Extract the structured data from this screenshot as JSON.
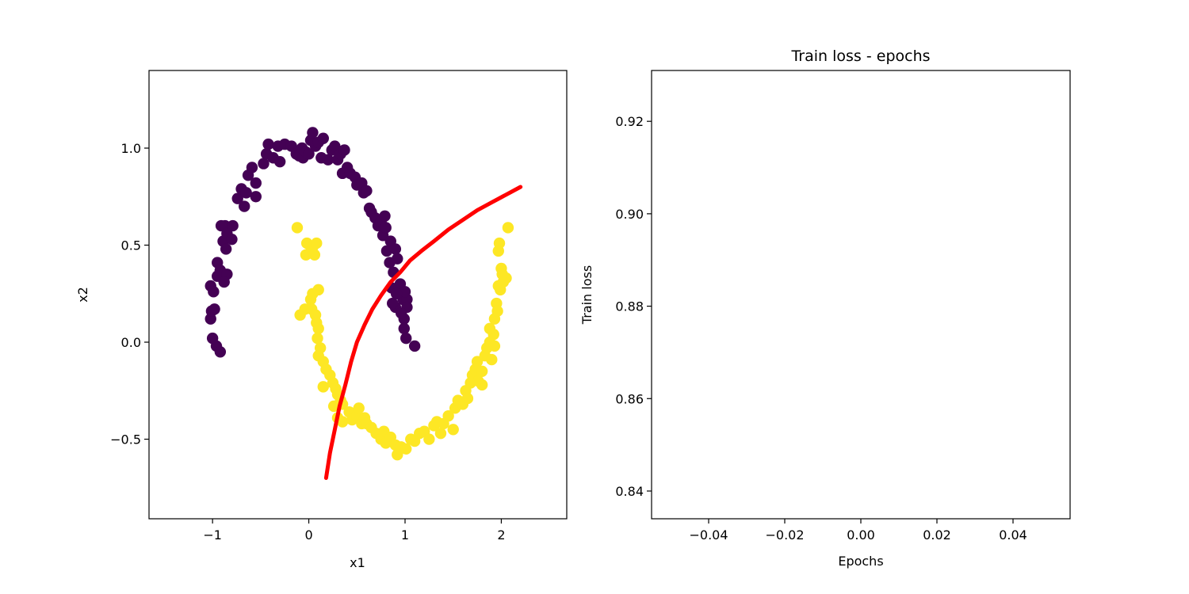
{
  "chart_data": [
    {
      "type": "scatter",
      "title": "",
      "xlabel": "x1",
      "ylabel": "x2",
      "xlim": [
        -1.66,
        2.68
      ],
      "ylim": [
        -0.91,
        1.4
      ],
      "xticks": [
        -1,
        0,
        1,
        2
      ],
      "yticks": [
        -0.5,
        0.0,
        0.5,
        1.0
      ],
      "xtick_labels": [
        "−1",
        "0",
        "1",
        "2"
      ],
      "ytick_labels": [
        "−0.5",
        "0.0",
        "0.5",
        "1.0"
      ],
      "grid": false,
      "colors": {
        "class0": "#440154",
        "class1": "#fde725",
        "boundary": "#ff0000"
      },
      "series": [
        {
          "kind": "scatter",
          "points": [
            [
              -1.02,
              0.12
            ],
            [
              -1.01,
              0.16
            ],
            [
              -1.0,
              0.02
            ],
            [
              -0.98,
              0.17
            ],
            [
              -1.02,
              0.29
            ],
            [
              -0.99,
              0.26
            ],
            [
              -0.95,
              0.34
            ],
            [
              -0.96,
              -0.02
            ],
            [
              -0.92,
              -0.05
            ],
            [
              -0.95,
              0.41
            ],
            [
              -0.92,
              0.37
            ],
            [
              -0.85,
              0.35
            ],
            [
              -0.88,
              0.31
            ],
            [
              -0.89,
              0.52
            ],
            [
              -0.86,
              0.48
            ],
            [
              -0.91,
              0.6
            ],
            [
              -0.87,
              0.6
            ],
            [
              -0.85,
              0.56
            ],
            [
              -0.79,
              0.6
            ],
            [
              -0.8,
              0.53
            ],
            [
              -0.74,
              0.74
            ],
            [
              -0.7,
              0.79
            ],
            [
              -0.67,
              0.7
            ],
            [
              -0.65,
              0.77
            ],
            [
              -0.63,
              0.86
            ],
            [
              -0.59,
              0.9
            ],
            [
              -0.55,
              0.82
            ],
            [
              -0.55,
              0.75
            ],
            [
              -0.47,
              0.92
            ],
            [
              -0.44,
              0.97
            ],
            [
              -0.42,
              1.02
            ],
            [
              -0.37,
              0.95
            ],
            [
              -0.32,
              1.01
            ],
            [
              -0.3,
              0.93
            ],
            [
              -0.25,
              1.02
            ],
            [
              -0.18,
              1.01
            ],
            [
              -0.13,
              0.97
            ],
            [
              -0.1,
              0.96
            ],
            [
              -0.07,
              1.0
            ],
            [
              -0.06,
              0.95
            ],
            [
              -0.03,
              0.98
            ],
            [
              0.0,
              0.97
            ],
            [
              0.02,
              1.04
            ],
            [
              0.04,
              1.08
            ],
            [
              0.07,
              1.01
            ],
            [
              0.1,
              1.03
            ],
            [
              0.13,
              0.95
            ],
            [
              0.15,
              1.05
            ],
            [
              0.2,
              0.94
            ],
            [
              0.24,
              0.99
            ],
            [
              0.27,
              1.01
            ],
            [
              0.3,
              0.94
            ],
            [
              0.33,
              0.97
            ],
            [
              0.35,
              0.87
            ],
            [
              0.37,
              0.99
            ],
            [
              0.4,
              0.9
            ],
            [
              0.43,
              0.87
            ],
            [
              0.48,
              0.85
            ],
            [
              0.5,
              0.81
            ],
            [
              0.55,
              0.82
            ],
            [
              0.57,
              0.77
            ],
            [
              0.6,
              0.78
            ],
            [
              0.63,
              0.69
            ],
            [
              0.65,
              0.67
            ],
            [
              0.69,
              0.64
            ],
            [
              0.72,
              0.6
            ],
            [
              0.75,
              0.62
            ],
            [
              0.77,
              0.55
            ],
            [
              0.79,
              0.65
            ],
            [
              0.8,
              0.59
            ],
            [
              0.81,
              0.47
            ],
            [
              0.85,
              0.52
            ],
            [
              0.84,
              0.41
            ],
            [
              0.9,
              0.48
            ],
            [
              0.88,
              0.36
            ],
            [
              0.92,
              0.43
            ],
            [
              0.95,
              0.3
            ],
            [
              0.98,
              0.22
            ],
            [
              0.99,
              0.12
            ],
            [
              1.02,
              0.22
            ],
            [
              1.0,
              0.26
            ],
            [
              0.99,
              0.07
            ],
            [
              0.86,
              0.28
            ],
            [
              0.9,
              0.18
            ],
            [
              1.02,
              0.18
            ],
            [
              1.01,
              0.02
            ],
            [
              1.1,
              -0.02
            ],
            [
              0.91,
              0.25
            ],
            [
              0.87,
              0.2
            ],
            [
              0.96,
              0.15
            ]
          ]
        },
        {
          "kind": "scatter",
          "points": [
            [
              -0.12,
              0.59
            ],
            [
              -0.02,
              0.51
            ],
            [
              -0.03,
              0.45
            ],
            [
              0.01,
              0.46
            ],
            [
              0.04,
              0.49
            ],
            [
              0.08,
              0.51
            ],
            [
              0.06,
              0.45
            ],
            [
              -0.09,
              0.14
            ],
            [
              -0.04,
              0.17
            ],
            [
              0.02,
              0.22
            ],
            [
              0.04,
              0.25
            ],
            [
              0.1,
              0.27
            ],
            [
              0.03,
              0.17
            ],
            [
              0.07,
              0.14
            ],
            [
              0.08,
              0.1
            ],
            [
              0.1,
              0.07
            ],
            [
              0.09,
              0.02
            ],
            [
              0.12,
              -0.03
            ],
            [
              0.1,
              -0.07
            ],
            [
              0.15,
              -0.1
            ],
            [
              0.18,
              -0.14
            ],
            [
              0.22,
              -0.17
            ],
            [
              0.25,
              -0.21
            ],
            [
              0.28,
              -0.24
            ],
            [
              0.3,
              -0.27
            ],
            [
              0.33,
              -0.3
            ],
            [
              0.35,
              -0.32
            ],
            [
              0.15,
              -0.23
            ],
            [
              0.26,
              -0.33
            ],
            [
              0.3,
              -0.39
            ],
            [
              0.35,
              -0.41
            ],
            [
              0.42,
              -0.36
            ],
            [
              0.45,
              -0.4
            ],
            [
              0.5,
              -0.38
            ],
            [
              0.55,
              -0.42
            ],
            [
              0.58,
              -0.39
            ],
            [
              0.6,
              -0.42
            ],
            [
              0.52,
              -0.34
            ],
            [
              0.65,
              -0.44
            ],
            [
              0.7,
              -0.47
            ],
            [
              0.75,
              -0.5
            ],
            [
              0.78,
              -0.46
            ],
            [
              0.8,
              -0.52
            ],
            [
              0.85,
              -0.49
            ],
            [
              0.9,
              -0.53
            ],
            [
              0.92,
              -0.58
            ],
            [
              0.96,
              -0.54
            ],
            [
              1.01,
              -0.55
            ],
            [
              1.06,
              -0.5
            ],
            [
              1.1,
              -0.51
            ],
            [
              1.15,
              -0.47
            ],
            [
              1.2,
              -0.46
            ],
            [
              1.25,
              -0.5
            ],
            [
              1.3,
              -0.43
            ],
            [
              1.33,
              -0.41
            ],
            [
              1.37,
              -0.47
            ],
            [
              1.4,
              -0.42
            ],
            [
              1.45,
              -0.38
            ],
            [
              1.5,
              -0.45
            ],
            [
              1.52,
              -0.34
            ],
            [
              1.55,
              -0.3
            ],
            [
              1.6,
              -0.32
            ],
            [
              1.63,
              -0.25
            ],
            [
              1.65,
              -0.29
            ],
            [
              1.68,
              -0.21
            ],
            [
              1.7,
              -0.17
            ],
            [
              1.73,
              -0.14
            ],
            [
              1.75,
              -0.1
            ],
            [
              1.76,
              -0.2
            ],
            [
              1.8,
              -0.15
            ],
            [
              1.83,
              -0.07
            ],
            [
              1.85,
              -0.03
            ],
            [
              1.88,
              0.0
            ],
            [
              1.9,
              -0.09
            ],
            [
              1.92,
              0.04
            ],
            [
              1.88,
              0.07
            ],
            [
              1.93,
              0.12
            ],
            [
              1.95,
              0.2
            ],
            [
              1.96,
              0.16
            ],
            [
              1.99,
              0.27
            ],
            [
              1.97,
              0.29
            ],
            [
              2.02,
              0.31
            ],
            [
              2.05,
              0.33
            ],
            [
              2.0,
              0.38
            ],
            [
              2.01,
              0.35
            ],
            [
              1.97,
              0.47
            ],
            [
              1.98,
              0.51
            ],
            [
              2.07,
              0.59
            ],
            [
              1.93,
              -0.02
            ],
            [
              1.8,
              -0.22
            ]
          ]
        },
        {
          "kind": "line",
          "x": [
            0.18,
            0.22,
            0.27,
            0.32,
            0.38,
            0.44,
            0.5,
            0.58,
            0.66,
            0.75,
            0.85,
            0.95,
            1.05,
            1.17,
            1.3,
            1.45,
            1.6,
            1.75,
            1.9,
            2.05,
            2.2
          ],
          "y": [
            -0.7,
            -0.57,
            -0.45,
            -0.33,
            -0.22,
            -0.1,
            0.0,
            0.09,
            0.17,
            0.24,
            0.31,
            0.36,
            0.42,
            0.47,
            0.52,
            0.58,
            0.63,
            0.68,
            0.72,
            0.76,
            0.8
          ]
        }
      ]
    },
    {
      "type": "line",
      "title": "Train loss - epochs",
      "xlabel": "Epochs",
      "ylabel": "Train loss",
      "xlim": [
        -0.055,
        0.055
      ],
      "ylim": [
        0.834,
        0.931
      ],
      "xticks": [
        -0.04,
        -0.02,
        0.0,
        0.02,
        0.04
      ],
      "yticks": [
        0.84,
        0.86,
        0.88,
        0.9,
        0.92
      ],
      "xtick_labels": [
        "−0.04",
        "−0.02",
        "0.00",
        "0.02",
        "0.04"
      ],
      "ytick_labels": [
        "0.84",
        "0.86",
        "0.88",
        "0.90",
        "0.92"
      ],
      "grid": false,
      "series": []
    }
  ]
}
